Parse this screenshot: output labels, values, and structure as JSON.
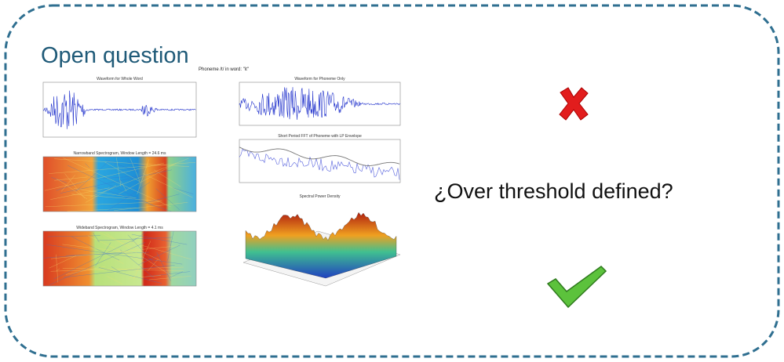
{
  "slide": {
    "title": "Open question",
    "question": "¿Over threshold defined?",
    "figure": {
      "title": "Phoneme /t/ in word: \"it\"",
      "panels": [
        "Waveform for Whole Word",
        "Waveform for Phoneme Only",
        "Narrowband Spectrogram, Window Length = 24.6 ms",
        "Short Period FFT of Phoneme with LP Envelope",
        "Wideband Spectrogram, Window Length = 4.1 ms",
        "Spectral Power Density"
      ]
    }
  }
}
